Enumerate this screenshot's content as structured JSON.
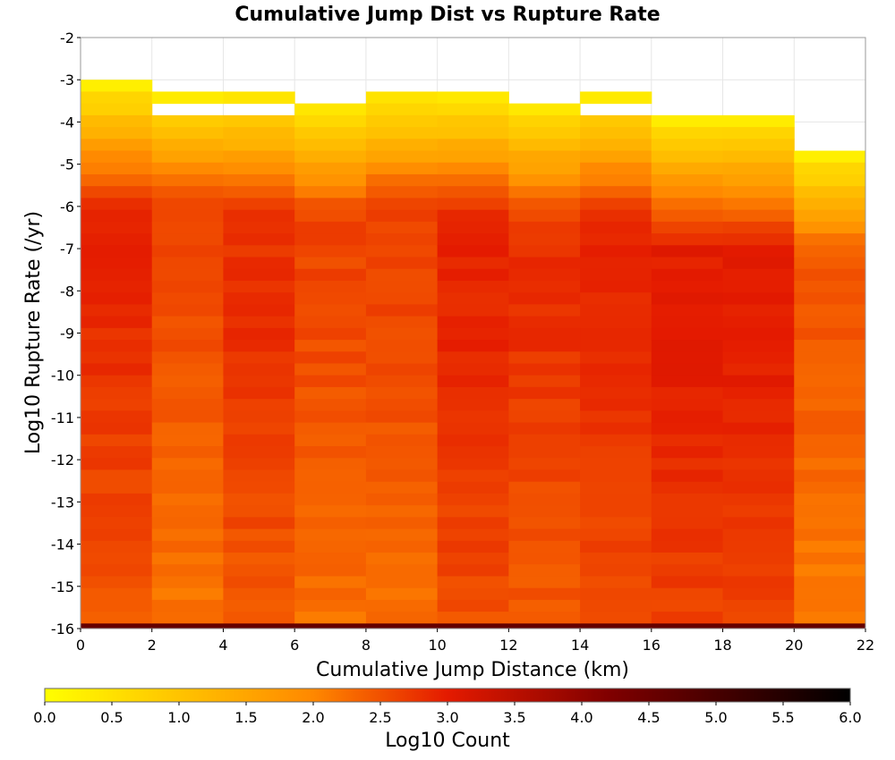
{
  "chart_data": {
    "type": "heatmap",
    "title": "Cumulative Jump Dist vs Rupture Rate",
    "xlabel": "Cumulative Jump Distance (km)",
    "ylabel": "Log10 Rupture Rate (/yr)",
    "xlim": [
      0,
      22
    ],
    "ylim": [
      -16,
      -2
    ],
    "x_ticks": [
      "0",
      "2",
      "4",
      "6",
      "8",
      "10",
      "12",
      "14",
      "16",
      "18",
      "20",
      "22"
    ],
    "y_ticks": [
      "-2",
      "-3",
      "-4",
      "-5",
      "-6",
      "-7",
      "-8",
      "-9",
      "-10",
      "-11",
      "-12",
      "-13",
      "-14",
      "-15",
      "-16"
    ],
    "x_bins": [
      [
        0,
        2
      ],
      [
        2,
        4
      ],
      [
        4,
        6
      ],
      [
        6,
        8
      ],
      [
        8,
        10
      ],
      [
        10,
        12
      ],
      [
        12,
        14
      ],
      [
        14,
        16
      ],
      [
        16,
        18
      ],
      [
        18,
        20
      ],
      [
        20,
        22
      ]
    ],
    "y_bin_size": 0.28,
    "top_edges": [
      -3.0,
      -3.28,
      -3.28,
      -3.56,
      -3.28,
      -3.28,
      -3.56,
      -3.28,
      -3.84,
      -3.84,
      -4.68
    ],
    "gaps": [
      {
        "column": 1,
        "y_range": [
          -3.84,
          -3.56
        ]
      },
      {
        "column": 2,
        "y_range": [
          -3.84,
          -3.56
        ]
      },
      {
        "column": 7,
        "y_range": [
          -3.84,
          -3.56
        ]
      }
    ],
    "column_peaks": [
      {
        "y": -6.0,
        "value": 3.0
      },
      {
        "y": -8.0,
        "value": 2.6
      },
      {
        "y": -9.0,
        "value": 2.8
      },
      {
        "y": -8.5,
        "value": 2.6
      },
      {
        "y": -9.0,
        "value": 2.6
      },
      {
        "y": -9.0,
        "value": 2.9
      },
      {
        "y": -9.0,
        "value": 2.8
      },
      {
        "y": -9.0,
        "value": 2.9
      },
      {
        "y": -9.2,
        "value": 3.0
      },
      {
        "y": -9.2,
        "value": 3.0
      },
      {
        "y": -8.0,
        "value": 2.5
      }
    ],
    "bottom_row": {
      "y_range": [
        -16.0,
        -15.88
      ],
      "value": 4.6
    },
    "colorbar": {
      "label": "Log10 Count",
      "range": [
        0.0,
        6.0
      ],
      "ticks": [
        "0.0",
        "0.5",
        "1.0",
        "1.5",
        "2.0",
        "2.5",
        "3.0",
        "3.5",
        "4.0",
        "4.5",
        "5.0",
        "5.5",
        "6.0"
      ],
      "colors": [
        "#ffff00",
        "#ff9900",
        "#ff4400",
        "#e01500",
        "#800000",
        "#000000"
      ]
    }
  }
}
